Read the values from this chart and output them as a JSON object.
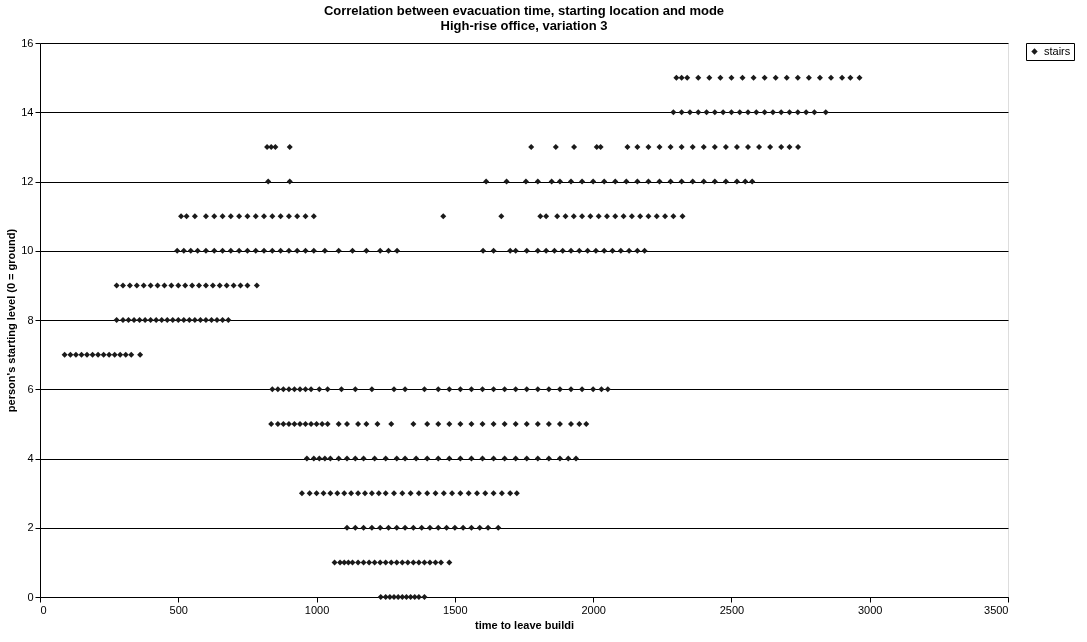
{
  "chart_data": {
    "type": "scatter",
    "title": "Correlation between evacuation time, starting location and mode",
    "subtitle": "High-rise office, variation 3",
    "xlabel": "time to leave buildi",
    "ylabel": "person's starting level (0 = ground)",
    "xlim": [
      0,
      3500
    ],
    "xticks": [
      0,
      500,
      1000,
      1500,
      2000,
      2500,
      3000,
      3500
    ],
    "ylim": [
      0,
      16
    ],
    "yticks": [
      0,
      2,
      4,
      6,
      8,
      10,
      12,
      14,
      16
    ],
    "grid": "y",
    "legend": "right",
    "marker": "diamond",
    "series": [
      {
        "name": "stairs",
        "color": "#1a1a1a",
        "x": [
          1232,
          1250,
          1265,
          1280,
          1295,
          1310,
          1325,
          1340,
          1355,
          1370,
          1390,
          1065,
          1085,
          1100,
          1115,
          1130,
          1150,
          1170,
          1190,
          1210,
          1230,
          1250,
          1270,
          1290,
          1310,
          1330,
          1350,
          1370,
          1390,
          1410,
          1430,
          1450,
          1480,
          1110,
          1140,
          1170,
          1200,
          1230,
          1260,
          1290,
          1320,
          1350,
          1380,
          1410,
          1440,
          1470,
          1500,
          1530,
          1560,
          1590,
          1620,
          1657,
          947,
          975,
          1000,
          1025,
          1050,
          1075,
          1100,
          1125,
          1150,
          1175,
          1200,
          1225,
          1250,
          1280,
          1310,
          1340,
          1370,
          1400,
          1430,
          1460,
          1490,
          1520,
          1550,
          1580,
          1610,
          1640,
          1670,
          1700,
          1724,
          965,
          990,
          1010,
          1030,
          1050,
          1080,
          1110,
          1140,
          1170,
          1210,
          1250,
          1290,
          1320,
          1360,
          1400,
          1440,
          1480,
          1520,
          1560,
          1600,
          1640,
          1680,
          1720,
          1760,
          1800,
          1840,
          1880,
          1910,
          1938,
          836,
          860,
          880,
          900,
          920,
          940,
          960,
          980,
          1000,
          1020,
          1040,
          1080,
          1110,
          1150,
          1180,
          1220,
          1270,
          1350,
          1400,
          1440,
          1480,
          1520,
          1560,
          1600,
          1640,
          1680,
          1720,
          1760,
          1800,
          1840,
          1880,
          1920,
          1950,
          1975,
          840,
          860,
          880,
          900,
          920,
          940,
          960,
          980,
          1010,
          1040,
          1090,
          1140,
          1200,
          1280,
          1320,
          1390,
          1440,
          1480,
          1520,
          1560,
          1600,
          1640,
          1680,
          1720,
          1760,
          1800,
          1840,
          1880,
          1920,
          1960,
          2000,
          2030,
          2053,
          89,
          110,
          130,
          150,
          170,
          190,
          210,
          230,
          250,
          270,
          290,
          310,
          330,
          362,
          277,
          300,
          320,
          340,
          360,
          380,
          400,
          420,
          440,
          460,
          480,
          500,
          520,
          540,
          560,
          580,
          600,
          620,
          640,
          660,
          681,
          277,
          300,
          325,
          350,
          375,
          400,
          425,
          450,
          475,
          500,
          525,
          550,
          575,
          600,
          625,
          650,
          675,
          700,
          725,
          750,
          784,
          496,
          520,
          545,
          570,
          600,
          630,
          660,
          690,
          720,
          750,
          780,
          810,
          840,
          870,
          900,
          930,
          960,
          990,
          1030,
          1080,
          1130,
          1180,
          1230,
          1260,
          1291,
          1602,
          1640,
          1700,
          1720,
          1760,
          1800,
          1830,
          1860,
          1890,
          1920,
          1950,
          1980,
          2010,
          2040,
          2070,
          2100,
          2130,
          2160,
          2186,
          510,
          530,
          560,
          600,
          630,
          660,
          690,
          720,
          750,
          780,
          810,
          840,
          870,
          900,
          930,
          960,
          990,
          1458,
          1668,
          1809,
          1830,
          1870,
          1900,
          1930,
          1960,
          1990,
          2020,
          2050,
          2080,
          2110,
          2140,
          2170,
          2200,
          2230,
          2260,
          2290,
          2323,
          825,
          903,
          1613,
          1687,
          1757,
          1800,
          1850,
          1880,
          1920,
          1960,
          2000,
          2040,
          2080,
          2120,
          2160,
          2200,
          2240,
          2280,
          2320,
          2360,
          2400,
          2440,
          2480,
          2520,
          2550,
          2575,
          821,
          836,
          851,
          903,
          1776,
          1865,
          1931,
          2013,
          2027,
          2124,
          2160,
          2200,
          2240,
          2280,
          2320,
          2360,
          2400,
          2440,
          2480,
          2520,
          2560,
          2600,
          2640,
          2680,
          2710,
          2741,
          2290,
          2320,
          2350,
          2380,
          2410,
          2440,
          2470,
          2500,
          2530,
          2560,
          2590,
          2620,
          2650,
          2680,
          2710,
          2740,
          2770,
          2800,
          2841,
          2301,
          2320,
          2340,
          2380,
          2420,
          2460,
          2500,
          2540,
          2580,
          2620,
          2660,
          2700,
          2740,
          2780,
          2820,
          2860,
          2900,
          2930,
          2963
        ],
        "values": [
          0,
          0,
          0,
          0,
          0,
          0,
          0,
          0,
          0,
          0,
          0,
          1,
          1,
          1,
          1,
          1,
          1,
          1,
          1,
          1,
          1,
          1,
          1,
          1,
          1,
          1,
          1,
          1,
          1,
          1,
          1,
          1,
          1,
          2,
          2,
          2,
          2,
          2,
          2,
          2,
          2,
          2,
          2,
          2,
          2,
          2,
          2,
          2,
          2,
          2,
          2,
          2,
          3,
          3,
          3,
          3,
          3,
          3,
          3,
          3,
          3,
          3,
          3,
          3,
          3,
          3,
          3,
          3,
          3,
          3,
          3,
          3,
          3,
          3,
          3,
          3,
          3,
          3,
          3,
          3,
          3,
          4,
          4,
          4,
          4,
          4,
          4,
          4,
          4,
          4,
          4,
          4,
          4,
          4,
          4,
          4,
          4,
          4,
          4,
          4,
          4,
          4,
          4,
          4,
          4,
          4,
          4,
          4,
          4,
          4,
          5,
          5,
          5,
          5,
          5,
          5,
          5,
          5,
          5,
          5,
          5,
          5,
          5,
          5,
          5,
          5,
          5,
          5,
          5,
          5,
          5,
          5,
          5,
          5,
          5,
          5,
          5,
          5,
          5,
          5,
          5,
          5,
          5,
          5,
          6,
          6,
          6,
          6,
          6,
          6,
          6,
          6,
          6,
          6,
          6,
          6,
          6,
          6,
          6,
          6,
          6,
          6,
          6,
          6,
          6,
          6,
          6,
          6,
          6,
          6,
          6,
          6,
          6,
          6,
          6,
          6,
          6,
          7,
          7,
          7,
          7,
          7,
          7,
          7,
          7,
          7,
          7,
          7,
          7,
          7,
          7,
          8,
          8,
          8,
          8,
          8,
          8,
          8,
          8,
          8,
          8,
          8,
          8,
          8,
          8,
          8,
          8,
          8,
          8,
          8,
          8,
          8,
          9,
          9,
          9,
          9,
          9,
          9,
          9,
          9,
          9,
          9,
          9,
          9,
          9,
          9,
          9,
          9,
          9,
          9,
          9,
          9,
          9,
          10,
          10,
          10,
          10,
          10,
          10,
          10,
          10,
          10,
          10,
          10,
          10,
          10,
          10,
          10,
          10,
          10,
          10,
          10,
          10,
          10,
          10,
          10,
          10,
          10,
          10,
          10,
          10,
          10,
          10,
          10,
          10,
          10,
          10,
          10,
          10,
          10,
          10,
          10,
          10,
          10,
          10,
          10,
          10,
          11,
          11,
          11,
          11,
          11,
          11,
          11,
          11,
          11,
          11,
          11,
          11,
          11,
          11,
          11,
          11,
          11,
          11,
          11,
          11,
          11,
          11,
          11,
          11,
          11,
          11,
          11,
          11,
          11,
          11,
          11,
          11,
          11,
          11,
          11,
          11,
          11,
          12,
          12,
          12,
          12,
          12,
          12,
          12,
          12,
          12,
          12,
          12,
          12,
          12,
          12,
          12,
          12,
          12,
          12,
          12,
          12,
          12,
          12,
          12,
          12,
          12,
          12,
          13,
          13,
          13,
          13,
          13,
          13,
          13,
          13,
          13,
          13,
          13,
          13,
          13,
          13,
          13,
          13,
          13,
          13,
          13,
          13,
          13,
          13,
          13,
          13,
          13,
          13,
          14,
          14,
          14,
          14,
          14,
          14,
          14,
          14,
          14,
          14,
          14,
          14,
          14,
          14,
          14,
          14,
          14,
          14,
          14,
          15,
          15,
          15,
          15,
          15,
          15,
          15,
          15,
          15,
          15,
          15,
          15,
          15,
          15,
          15,
          15,
          15,
          15,
          15
        ]
      }
    ]
  }
}
